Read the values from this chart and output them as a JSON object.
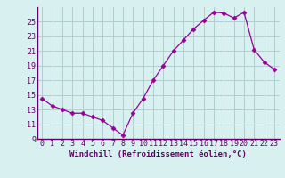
{
  "x": [
    0,
    1,
    2,
    3,
    4,
    5,
    6,
    7,
    8,
    9,
    10,
    11,
    12,
    13,
    14,
    15,
    16,
    17,
    18,
    19,
    20,
    21,
    22,
    23
  ],
  "y": [
    14.5,
    13.5,
    13.0,
    12.5,
    12.5,
    12.0,
    11.5,
    10.5,
    9.5,
    12.5,
    14.5,
    17.0,
    19.0,
    21.0,
    22.5,
    24.0,
    25.2,
    26.3,
    26.2,
    25.5,
    26.3,
    21.2,
    19.5,
    18.5
  ],
  "line_color": "#990099",
  "marker": "D",
  "marker_size": 2.5,
  "bg_color": "#d8f0f0",
  "grid_color": "#b0cece",
  "xlabel": "Windchill (Refroidissement éolien,°C)",
  "xlabel_color": "#660066",
  "tick_color": "#660066",
  "axis_color": "#660066",
  "ylim": [
    9,
    27
  ],
  "xlim": [
    -0.5,
    23.5
  ],
  "yticks": [
    9,
    11,
    13,
    15,
    17,
    19,
    21,
    23,
    25
  ],
  "xticks": [
    0,
    1,
    2,
    3,
    4,
    5,
    6,
    7,
    8,
    9,
    10,
    11,
    12,
    13,
    14,
    15,
    16,
    17,
    18,
    19,
    20,
    21,
    22,
    23
  ],
  "label_fontsize": 6.5,
  "tick_fontsize": 6
}
